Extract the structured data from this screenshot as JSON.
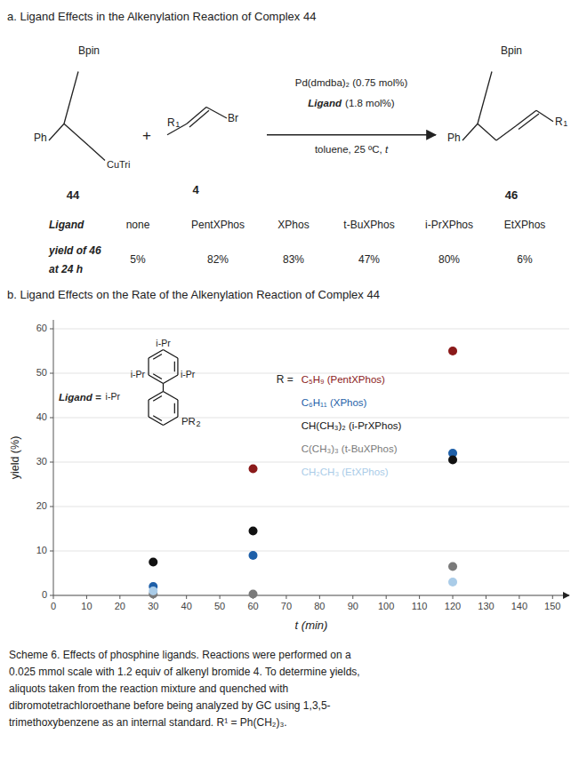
{
  "chart_data": [
    {
      "type": "table",
      "title": "a. Ligand Effects in the Alkenylation Reaction of Complex 44",
      "annotations": [
        "Bpin",
        "Ph",
        "CuTri",
        "44",
        "+",
        "R",
        "1",
        "Br",
        "4",
        "Pd(dmdba)₂ (0.75 mol%)",
        "Ligand",
        "(1.8 mol%)",
        "toluene, 25 ºC, ",
        "t",
        "Bpin",
        "Ph",
        "R",
        "1",
        "46"
      ],
      "category_label": "Ligand",
      "categories": [
        "none",
        "PentXPhos",
        "XPhos",
        "t-BuXPhos",
        "i-PrXPhos",
        "EtXPhos"
      ],
      "value_label": [
        "yield of 46",
        "at 24 h"
      ],
      "values": [
        5,
        82,
        83,
        47,
        80,
        6
      ],
      "value_labels": [
        "5%",
        "82%",
        "83%",
        "47%",
        "80%",
        "6%"
      ]
    },
    {
      "type": "scatter",
      "title": "b. Ligand Effects on the Rate of the Alkenylation Reaction of Complex 44",
      "xlabel": "t (min)",
      "ylabel": "yield (%)",
      "series": [
        {
          "name": "C₅H₉ (PentXPhos)",
          "color": "#8B1A1A",
          "x": [
            60,
            120
          ],
          "values": [
            28.5,
            55.0
          ]
        },
        {
          "name": "C₆H₁₁ (XPhos)",
          "color": "#1E5FA8",
          "x": [
            30,
            60,
            120
          ],
          "values": [
            2.0,
            9.0,
            32.0
          ]
        },
        {
          "name": "CH(CH₃)₂ (i-PrXPhos)",
          "color": "#111111",
          "x": [
            30,
            60,
            120
          ],
          "values": [
            7.5,
            14.5,
            30.5
          ]
        },
        {
          "name": "C(CH₃)₃ (t-BuXPhos)",
          "color": "#7A7A7A",
          "x": [
            30,
            60,
            120
          ],
          "values": [
            0.3,
            0.3,
            6.5
          ]
        },
        {
          "name": "CH₂CH₃ (EtXPhos)",
          "color": "#AACCE8",
          "x": [
            30,
            120
          ],
          "values": [
            1.0,
            3.0
          ]
        }
      ],
      "xlim": [
        0,
        155
      ],
      "ylim": [
        0,
        62
      ],
      "xticks": [
        0,
        10,
        20,
        30,
        40,
        50,
        60,
        70,
        80,
        90,
        100,
        110,
        120,
        130,
        140,
        150
      ],
      "yticks": [
        0,
        10,
        20,
        30,
        40,
        50,
        60
      ],
      "grid": "y",
      "legend": "center",
      "annotations": [
        "Ligand =",
        "i-Pr",
        "i-Pr",
        "i-Pr",
        "i-Pr",
        "PR",
        "2",
        "R ="
      ],
      "caption": [
        "Scheme 6. Effects of phosphine ligands. Reactions were performed on a",
        "0.025 mmol scale with 1.2 equiv of alkenyl bromide 4. To determine yields,",
        "aliquots taken from the reaction mixture and quenched with",
        "dibromotetrachloroethane before being analyzed by GC using 1,3,5-",
        "trimethoxybenzene as an internal standard. R¹ = Ph(CH₂)₃."
      ]
    }
  ]
}
